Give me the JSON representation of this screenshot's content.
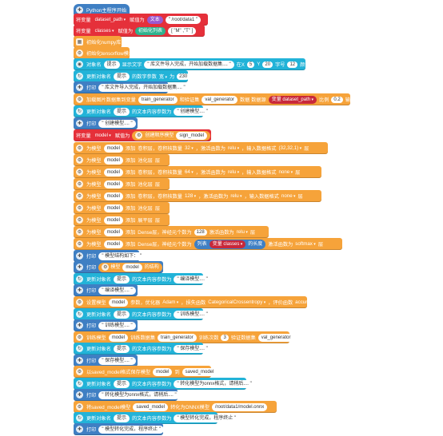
{
  "colors": {
    "blue": "#3f7fc3",
    "red": "#e5303a",
    "orange": "#f6a33a",
    "cyan": "#22b3d8",
    "purple": "#9b59d0",
    "teal": "#2fb28e",
    "darkred": "#c8283a"
  },
  "blocks": {
    "start": "Python主程序开始",
    "b1": {
      "a": "将变量",
      "var": "dataset_path",
      "b": "赋值为",
      "c": "文本",
      "val": "\" /root/data1 \""
    },
    "b2": {
      "a": "将变量",
      "var": "classes",
      "b": "赋值为",
      "c": "初始化列表",
      "val": "[ \"M\" ,\"T\" ]"
    },
    "b3": "初始化numpy库",
    "b4": "初始化tensorflow模块",
    "b5": {
      "a": "对象名",
      "obj": "提示",
      "b": "显示文字",
      "val": "\" 库文件导入完成，开始加载数据集.... \"",
      "c": "在X",
      "x": "5",
      "d": "Y",
      "y": "20",
      "e": "字号",
      "size": "12",
      "f": "颜色"
    },
    "b6": {
      "a": "更新对象名",
      "obj": "提示",
      "b": "的数字参数",
      "c": "宽",
      "d": "为",
      "val": "230"
    },
    "b7": {
      "a": "打印",
      "val": "\" 库文件导入完成，开始加载数据集.... \""
    },
    "b8": {
      "a": "加载图片数据集到变量",
      "v1": "train_generator",
      "b": "和验证集",
      "v2": "val_generator",
      "c": "数据 数据源",
      "src": "变量 dataset_path",
      "d": "比例",
      "ratio": "0.2",
      "e": "输入大小",
      "size": "32x32"
    },
    "b9": {
      "a": "更新对象名",
      "obj": "提示",
      "b": "的文本内容参数为",
      "val": "\" 创建模型.... \""
    },
    "b10": {
      "a": "打印",
      "val": "\" 创建模型.... \""
    },
    "b11": {
      "a": "将变量",
      "var": "model",
      "b": "赋值为",
      "c": "创建顺序模型",
      "val": "sign_model"
    },
    "l1": {
      "a": "为模型",
      "m": "model",
      "b": "添加",
      "c": "卷积层，卷积核数量",
      "n": "32",
      "d": "，激活函数为",
      "act": "relu",
      "e": "，输入数据格式",
      "fmt": "(32,32,1)",
      "f": "层"
    },
    "l2": {
      "a": "为模型",
      "m": "model",
      "b": "添加",
      "c": "池化层",
      "f": "层"
    },
    "l3": {
      "a": "为模型",
      "m": "model",
      "b": "添加",
      "c": "卷积层，卷积核数量",
      "n": "64",
      "d": "，激活函数为",
      "act": "relu",
      "e": "，输入数据格式",
      "fmt": "none",
      "f": "层"
    },
    "l4": {
      "a": "为模型",
      "m": "model",
      "b": "添加",
      "c": "池化层",
      "f": "层"
    },
    "l5": {
      "a": "为模型",
      "m": "model",
      "b": "添加",
      "c": "卷积层，卷积核数量",
      "n": "128",
      "d": "，激活函数为",
      "act": "relu",
      "e": "，输入数据格式",
      "fmt": "none",
      "f": "层"
    },
    "l6": {
      "a": "为模型",
      "m": "model",
      "b": "添加",
      "c": "池化层",
      "f": "层"
    },
    "l7": {
      "a": "为模型",
      "m": "model",
      "b": "添加",
      "c": "展平层",
      "f": "层"
    },
    "l8": {
      "a": "为模型",
      "m": "model",
      "b": "添加",
      "c": "Dense层，神经元个数为",
      "n": "128",
      "d": "激活函数为",
      "act": "relu",
      "f": "层"
    },
    "l9": {
      "a": "为模型",
      "m": "model",
      "b": "添加",
      "c": "Dense层，神经元个数为",
      "lst": "列表",
      "var": "变量 classes",
      "len": "的长度",
      "d": "激活函数为",
      "act": "softmax",
      "f": "层"
    },
    "b12": {
      "a": "打印",
      "val": "\" 模型结构如下： \""
    },
    "b13": {
      "a": "打印",
      "b": "模型",
      "m": "model",
      "c": "的结构"
    },
    "b14": {
      "a": "更新对象名",
      "obj": "提示",
      "b": "的文本内容参数为",
      "val": "\" 编译模型.... \""
    },
    "b15": {
      "a": "打印",
      "val": "\" 编译模型.... \""
    },
    "b16": {
      "a": "设置模型",
      "m": "model",
      "b": "参数，优化器",
      "opt": "Adam",
      "c": "，损失函数",
      "loss": "CategoricalCrossentropy",
      "d": "，评价函数",
      "met": "accuracy"
    },
    "b17": {
      "a": "更新对象名",
      "obj": "提示",
      "b": "的文本内容参数为",
      "val": "\" 训练模型.... \""
    },
    "b18": {
      "a": "打印",
      "val": "\" 训练模型.... \""
    },
    "b19": {
      "a": "训练模型",
      "m": "model",
      "b": "训练数据集",
      "tg": "train_generator",
      "c": "训练次数",
      "n": "3",
      "d": "验证数据集",
      "vg": "val_generator"
    },
    "b20": {
      "a": "更新对象名",
      "obj": "提示",
      "b": "的文本内容参数为",
      "val": "\" 保存模型.... \""
    },
    "b21": {
      "a": "打印",
      "val": "\" 保存模型.... \""
    },
    "b22": {
      "a": "以saved_model格式保存模型",
      "m": "model",
      "b": "到",
      "val": "saved_model"
    },
    "b23": {
      "a": "更新对象名",
      "obj": "提示",
      "b": "的文本内容参数为",
      "val": "\" 转化模型为onnx格式，请稍后.... \""
    },
    "b24": {
      "a": "打印",
      "val": "\" 转化模型为onnx格式，请稍后.... \""
    },
    "b25": {
      "a": "将saved_model模型",
      "val": "saved_model",
      "b": "转化为ONNX模型",
      "path": "/root/data1/model.onnx"
    },
    "b26": {
      "a": "更新对象名",
      "obj": "提示",
      "b": "的文本内容参数为",
      "val": "\" 模型转化完成，程序终止 \""
    },
    "b27": {
      "a": "打印",
      "val": "\" 模型转化完成，程序终止 \""
    }
  }
}
